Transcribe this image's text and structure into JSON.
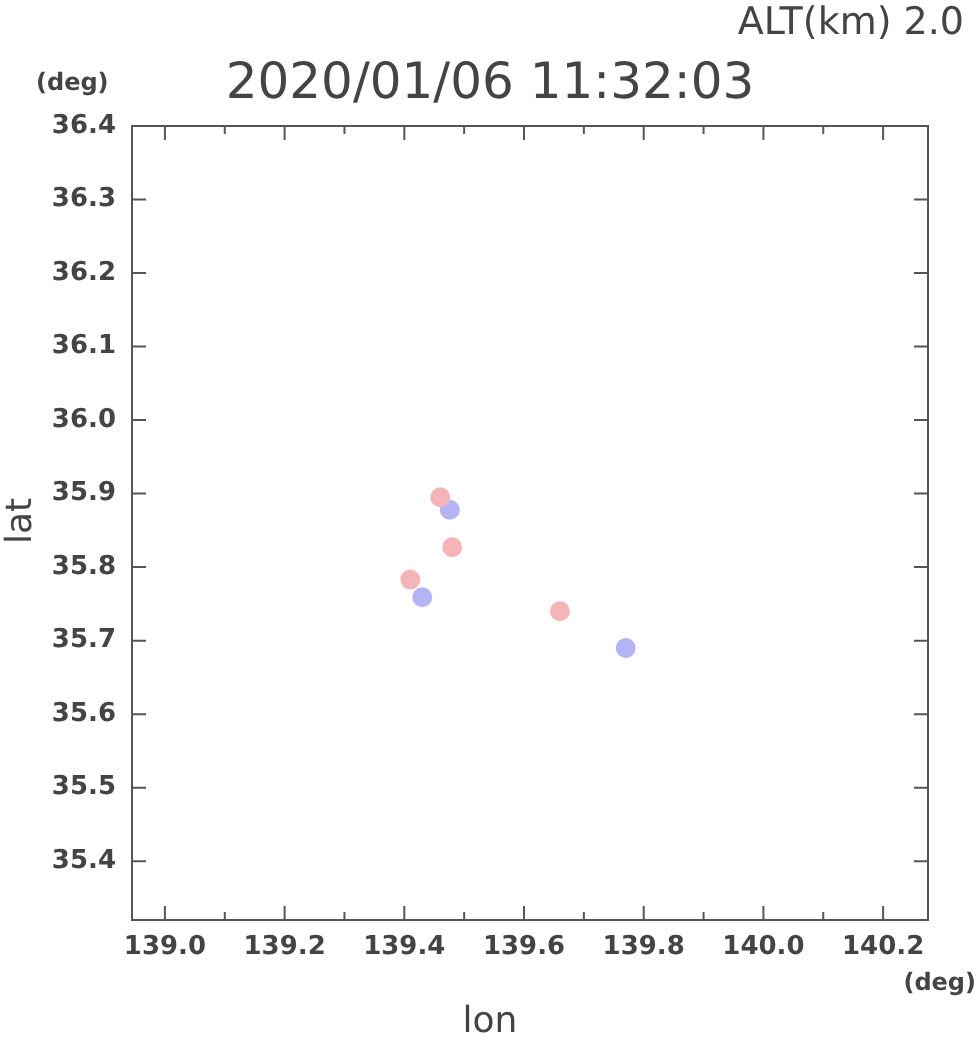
{
  "chart_data": {
    "type": "scatter",
    "title": "2020/01/06 11:32:03",
    "xlabel": "lon",
    "ylabel": "lat",
    "annotations": [
      "ALT(km) 2.0",
      "(deg)",
      "(deg)"
    ],
    "series": [
      {
        "color": "#f4b4b8",
        "x": [
          139.46,
          139.48,
          139.41,
          139.66
        ],
        "values": [
          35.895,
          35.827,
          35.783,
          35.74
        ]
      },
      {
        "color": "#b4b4f4",
        "x": [
          139.476,
          139.43,
          139.77
        ],
        "values": [
          35.878,
          35.759,
          35.69
        ]
      }
    ],
    "xlim": [
      138.945,
      140.275
    ],
    "ylim": [
      35.32,
      36.4
    ],
    "xticks": [
      {
        "value": 139,
        "label": "139.0"
      },
      {
        "value": 139.1,
        "label": null
      },
      139.2,
      {
        "value": 139.3,
        "label": null
      },
      139.4,
      {
        "value": 139.5,
        "label": null
      },
      139.6,
      {
        "value": 139.7,
        "label": null
      },
      139.8,
      {
        "value": 139.9,
        "label": null
      },
      {
        "value": 140,
        "label": "140.0"
      },
      {
        "value": 140.1,
        "label": null
      },
      140.2
    ],
    "yticks": [
      35.4,
      35.5,
      35.6,
      35.7,
      35.8,
      35.9,
      {
        "value": 36,
        "label": "36.0"
      },
      36.1,
      36.2,
      36.3,
      36.4
    ],
    "grid": false,
    "legend": false,
    "marker": "circle"
  }
}
